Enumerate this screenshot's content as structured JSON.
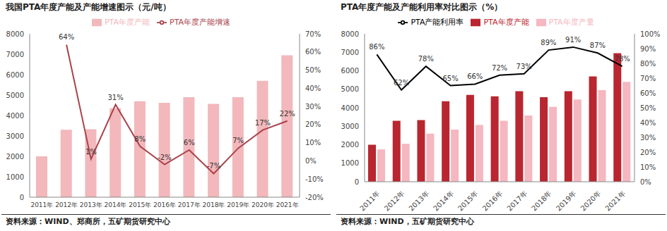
{
  "chart_data": [
    {
      "type": "bar",
      "title": "我国PTA年度产能及产能增速图示（元/吨）",
      "source": "资料来源：WIND、郑商所，五矿期货研究中心",
      "categories": [
        "2011年",
        "2012年",
        "2013年",
        "2014年",
        "2015年",
        "2016年",
        "2017年",
        "2018年",
        "2019年",
        "2020年",
        "2021年"
      ],
      "series": [
        {
          "name": "PTA年度产能",
          "type": "bar",
          "color": "#f2b8bb",
          "values": [
            2000,
            3300,
            3330,
            4350,
            4700,
            4620,
            4900,
            4570,
            4900,
            5700,
            6950
          ]
        },
        {
          "name": "PTA年度产能增速",
          "type": "line",
          "axis": "y2",
          "color": "#a9434b",
          "data_labels": true,
          "values": [
            null,
            64,
            1,
            31,
            8,
            -2,
            6,
            -7,
            7,
            17,
            22
          ],
          "value_labels": [
            null,
            "64%",
            "1%",
            "31%",
            "8%",
            "-2%",
            "6%",
            "-7%",
            "7%",
            "17%",
            "22%"
          ]
        }
      ],
      "ylim": [
        0,
        8000
      ],
      "yticks": [
        0,
        1000,
        2000,
        3000,
        4000,
        5000,
        6000,
        7000,
        8000
      ],
      "y2lim": [
        -20,
        70
      ],
      "y2ticks": [
        {
          "value": -20,
          "label": "-20%"
        },
        {
          "value": -10,
          "label": "-10%"
        },
        {
          "value": 0,
          "label": "0%"
        },
        {
          "value": 10,
          "label": "10%"
        },
        {
          "value": 20,
          "label": "20%"
        },
        {
          "value": 30,
          "label": "30%"
        },
        {
          "value": 40,
          "label": "40%"
        },
        {
          "value": 50,
          "label": "50%"
        },
        {
          "value": 60,
          "label": "60%"
        },
        {
          "value": 70,
          "label": "70%"
        }
      ],
      "grid": false,
      "legend": "top"
    },
    {
      "type": "bar",
      "title": "PTA年度产能及产能利用率对比图示（%）",
      "source": "资料来源：WIND，五矿期货研究中心",
      "categories": [
        "2011年",
        "2012年",
        "2013年",
        "2014年",
        "2015年",
        "2016年",
        "2017年",
        "2018年",
        "2019年",
        "2020年",
        "2021年"
      ],
      "series": [
        {
          "name": "PTA年度产能",
          "type": "bar",
          "color": "#b9262f",
          "values": [
            2000,
            3300,
            3330,
            4350,
            4700,
            4620,
            4900,
            4570,
            4900,
            5700,
            6950
          ]
        },
        {
          "name": "PTA年度产量",
          "type": "bar",
          "color": "#f5b7c0",
          "values": [
            1750,
            2050,
            2600,
            2820,
            3070,
            3300,
            3580,
            4050,
            4450,
            4950,
            5400
          ]
        },
        {
          "name": "PTA产能利用率",
          "type": "line",
          "axis": "y2",
          "color": "#000000",
          "data_labels": true,
          "values": [
            86,
            62,
            78,
            65,
            66,
            72,
            73,
            89,
            91,
            87,
            78
          ],
          "value_labels": [
            "86%",
            "62%",
            "78%",
            "65%",
            "66%",
            "72%",
            "73%",
            "89%",
            "91%",
            "87%",
            "78%"
          ]
        }
      ],
      "ylim": [
        0,
        8000
      ],
      "yticks": [
        0,
        1000,
        2000,
        3000,
        4000,
        5000,
        6000,
        7000,
        8000
      ],
      "y2lim": [
        0,
        100
      ],
      "y2ticks": [
        {
          "value": 0,
          "label": "0%"
        },
        {
          "value": 10,
          "label": "10%"
        },
        {
          "value": 20,
          "label": "20%"
        },
        {
          "value": 30,
          "label": "30%"
        },
        {
          "value": 40,
          "label": "40%"
        },
        {
          "value": 50,
          "label": "50%"
        },
        {
          "value": 60,
          "label": "60%"
        },
        {
          "value": 70,
          "label": "70%"
        },
        {
          "value": 80,
          "label": "80%"
        },
        {
          "value": 90,
          "label": "90%"
        },
        {
          "value": 100,
          "label": "100%"
        }
      ],
      "grid": false,
      "legend": "top"
    }
  ]
}
